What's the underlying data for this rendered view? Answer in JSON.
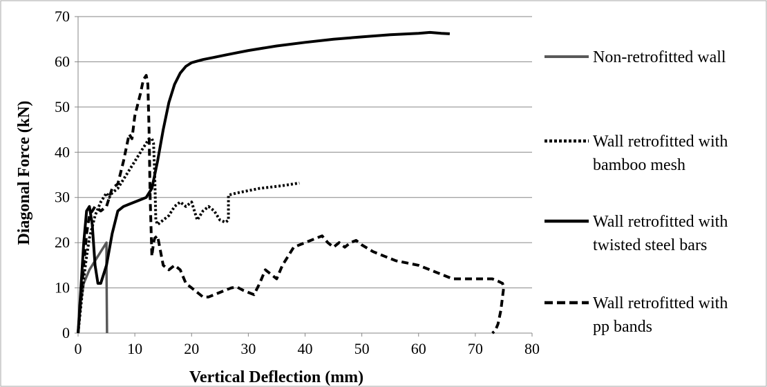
{
  "chart_data": {
    "type": "line",
    "title": "",
    "xlabel": "Vertical Deflection (mm)",
    "ylabel": "Diagonal Force (kN)",
    "xlim": [
      0,
      80
    ],
    "ylim": [
      0,
      70
    ],
    "xticks": [
      0,
      10,
      20,
      30,
      40,
      50,
      60,
      70,
      80
    ],
    "yticks": [
      0,
      10,
      20,
      30,
      40,
      50,
      60,
      70
    ],
    "grid": "horizontal",
    "legend_position": "right",
    "series": [
      {
        "name": "Non-retrofitted wall",
        "color": "#595959",
        "style": "solid",
        "x": [
          0,
          0.5,
          1,
          2,
          3,
          4,
          5,
          5,
          5.1
        ],
        "y": [
          0,
          7,
          11,
          14,
          16,
          18,
          20,
          15,
          0
        ]
      },
      {
        "name": "Wall retrofitted with bamboo mesh",
        "legend_lines": [
          "Wall retrofitted with",
          "bamboo mesh"
        ],
        "color": "#000000",
        "style": "dotted",
        "x": [
          0,
          0.5,
          1,
          1.5,
          2,
          3,
          4,
          5,
          5.5,
          6,
          7,
          8,
          9,
          10,
          11,
          12,
          12.5,
          13,
          13.3,
          13.5,
          13.7,
          14,
          15,
          16,
          17,
          18,
          19,
          20,
          21,
          22,
          23,
          24,
          25,
          26,
          26.5,
          26.5,
          28,
          30,
          32,
          34,
          36,
          38,
          39
        ],
        "y": [
          0,
          6,
          12,
          17,
          21,
          26,
          29,
          31,
          30,
          31,
          32,
          34,
          36,
          38,
          40,
          42,
          43,
          43,
          42,
          35,
          25,
          24,
          25,
          26,
          28,
          29,
          28,
          29,
          25,
          27,
          28,
          27,
          25,
          24.5,
          25,
          30.5,
          31,
          31.5,
          32,
          32.3,
          32.6,
          33,
          33.2
        ]
      },
      {
        "name": "Wall retrofitted with twisted steel bars",
        "legend_lines": [
          "Wall retrofitted with",
          "twisted steel bars"
        ],
        "color": "#000000",
        "style": "solid",
        "x": [
          0,
          0.5,
          1,
          1.5,
          2,
          2.5,
          3,
          3.5,
          4,
          5,
          6,
          7,
          8,
          9,
          10,
          11,
          12,
          13,
          14,
          15,
          16,
          17,
          18,
          19,
          20,
          22,
          24,
          26,
          28,
          30,
          35,
          40,
          45,
          50,
          55,
          60,
          62,
          64,
          65.5
        ],
        "y": [
          0,
          10,
          20,
          27,
          28,
          24,
          15,
          11,
          11,
          15,
          22,
          27,
          28,
          28.5,
          29,
          29.5,
          30,
          32,
          38,
          45,
          51,
          55,
          57.5,
          59,
          59.8,
          60.5,
          61,
          61.5,
          62,
          62.5,
          63.5,
          64.3,
          65,
          65.5,
          66,
          66.3,
          66.5,
          66.3,
          66.2
        ]
      },
      {
        "name": "Wall retrofitted with pp bands",
        "legend_lines": [
          "Wall retrofitted with",
          "pp bands"
        ],
        "color": "#000000",
        "style": "dashed",
        "x": [
          0,
          0.5,
          1,
          1.5,
          2,
          3,
          4,
          5,
          6,
          7,
          8,
          9,
          9.5,
          10,
          11,
          11.5,
          12,
          12.3,
          12.5,
          12.7,
          13,
          13.3,
          13.5,
          14,
          15,
          16,
          17,
          18,
          19,
          20,
          21,
          22,
          23,
          24,
          25,
          26,
          27,
          28,
          29,
          30,
          31,
          32,
          33,
          34,
          35,
          36,
          37,
          38,
          40,
          42,
          43,
          44,
          45,
          46,
          47,
          48,
          49,
          50,
          52,
          54,
          56,
          58,
          60,
          62,
          64,
          66,
          68,
          70,
          72,
          73,
          74,
          74.8,
          75,
          74.5,
          74,
          73.5,
          73
        ],
        "y": [
          0,
          8,
          15,
          22,
          26,
          28,
          27,
          28,
          32,
          33,
          38,
          44,
          43,
          48,
          53,
          56,
          57,
          55,
          45,
          30,
          17,
          20,
          21,
          21.5,
          15,
          14,
          15,
          14,
          11,
          10,
          9,
          8,
          8,
          8.5,
          9,
          9.5,
          10,
          10.2,
          9.5,
          9,
          8.5,
          11,
          14,
          13,
          12,
          15,
          17,
          19,
          20,
          21,
          21.5,
          20,
          19,
          20,
          19,
          20,
          20.5,
          19.5,
          18,
          17,
          16,
          15.5,
          15,
          14,
          13,
          12,
          12,
          12,
          12,
          12,
          11.5,
          11,
          10,
          5,
          2,
          0.5,
          0
        ]
      }
    ]
  }
}
